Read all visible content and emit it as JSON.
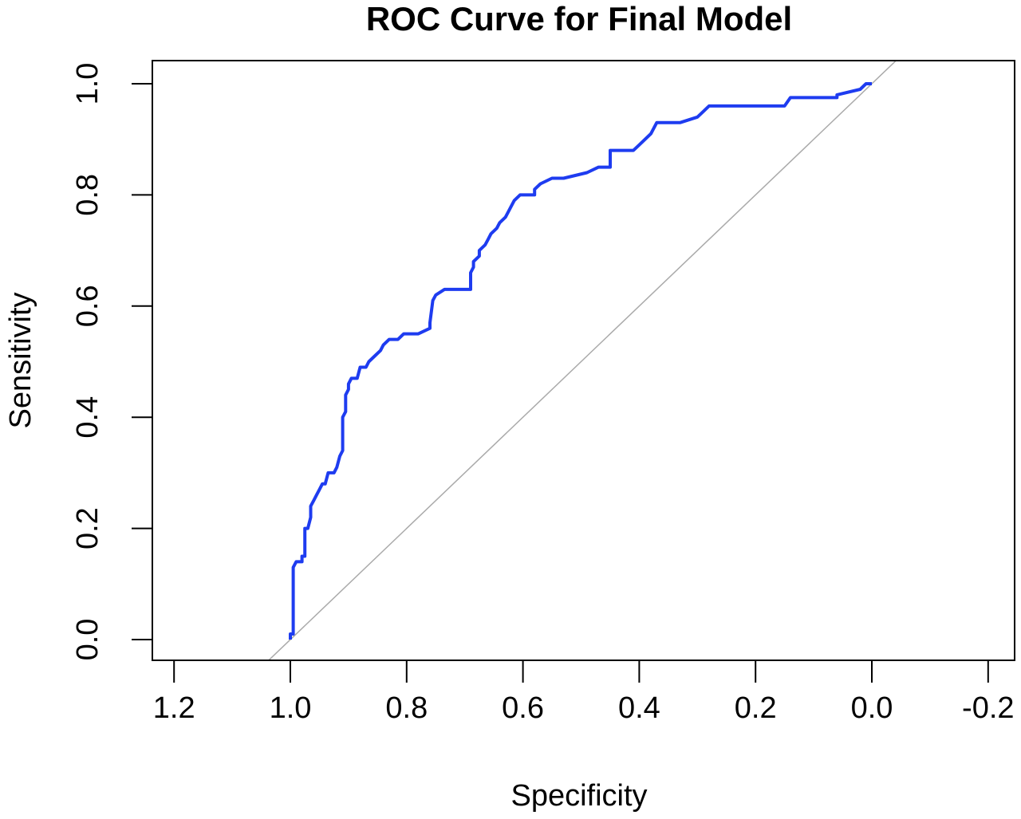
{
  "chart_data": {
    "type": "line",
    "title": "ROC Curve for Final Model",
    "xlabel": "Specificity",
    "ylabel": "Sensitivity",
    "xlim": [
      1.2,
      -0.2
    ],
    "ylim": [
      0.0,
      1.0
    ],
    "x_reversed": true,
    "grid": false,
    "legend": "none",
    "x_ticks": [
      1.2,
      1.0,
      0.8,
      0.6,
      0.4,
      0.2,
      0.0,
      -0.2
    ],
    "x_tick_labels": [
      "1.2",
      "1.0",
      "0.8",
      "0.6",
      "0.4",
      "0.2",
      "0.0",
      "-0.2"
    ],
    "y_ticks": [
      0.0,
      0.2,
      0.4,
      0.6,
      0.8,
      1.0
    ],
    "y_tick_labels": [
      "0.0",
      "0.2",
      "0.4",
      "0.6",
      "0.8",
      "1.0"
    ],
    "reference_line": {
      "x": [
        1.0,
        0.0
      ],
      "y": [
        0.0,
        1.0
      ],
      "color": "#aaaaaa"
    },
    "series": [
      {
        "color": "#1e3cf0",
        "x": [
          1.0,
          1.0,
          0.995,
          0.995,
          0.99,
          0.98,
          0.98,
          0.975,
          0.975,
          0.97,
          0.965,
          0.965,
          0.96,
          0.955,
          0.95,
          0.945,
          0.94,
          0.935,
          0.925,
          0.92,
          0.915,
          0.91,
          0.91,
          0.905,
          0.905,
          0.9,
          0.9,
          0.895,
          0.885,
          0.88,
          0.87,
          0.865,
          0.855,
          0.845,
          0.84,
          0.83,
          0.815,
          0.805,
          0.78,
          0.76,
          0.76,
          0.755,
          0.75,
          0.735,
          0.69,
          0.69,
          0.685,
          0.685,
          0.675,
          0.675,
          0.665,
          0.66,
          0.655,
          0.645,
          0.64,
          0.63,
          0.625,
          0.615,
          0.605,
          0.58,
          0.58,
          0.57,
          0.55,
          0.53,
          0.49,
          0.47,
          0.45,
          0.45,
          0.41,
          0.4,
          0.39,
          0.38,
          0.37,
          0.33,
          0.3,
          0.29,
          0.28,
          0.2,
          0.15,
          0.14,
          0.06,
          0.06,
          0.02,
          0.01,
          0.0
        ],
        "y": [
          0.0,
          0.01,
          0.01,
          0.13,
          0.14,
          0.14,
          0.15,
          0.15,
          0.2,
          0.2,
          0.22,
          0.24,
          0.25,
          0.26,
          0.27,
          0.28,
          0.28,
          0.3,
          0.3,
          0.31,
          0.33,
          0.34,
          0.4,
          0.41,
          0.44,
          0.45,
          0.46,
          0.47,
          0.47,
          0.49,
          0.49,
          0.5,
          0.51,
          0.52,
          0.53,
          0.54,
          0.54,
          0.55,
          0.55,
          0.56,
          0.57,
          0.61,
          0.62,
          0.63,
          0.63,
          0.66,
          0.67,
          0.68,
          0.69,
          0.7,
          0.71,
          0.72,
          0.73,
          0.74,
          0.75,
          0.76,
          0.77,
          0.79,
          0.8,
          0.8,
          0.81,
          0.82,
          0.83,
          0.83,
          0.84,
          0.85,
          0.85,
          0.88,
          0.88,
          0.89,
          0.9,
          0.91,
          0.93,
          0.93,
          0.94,
          0.95,
          0.96,
          0.96,
          0.96,
          0.975,
          0.975,
          0.98,
          0.99,
          1.0,
          1.0
        ]
      }
    ]
  }
}
